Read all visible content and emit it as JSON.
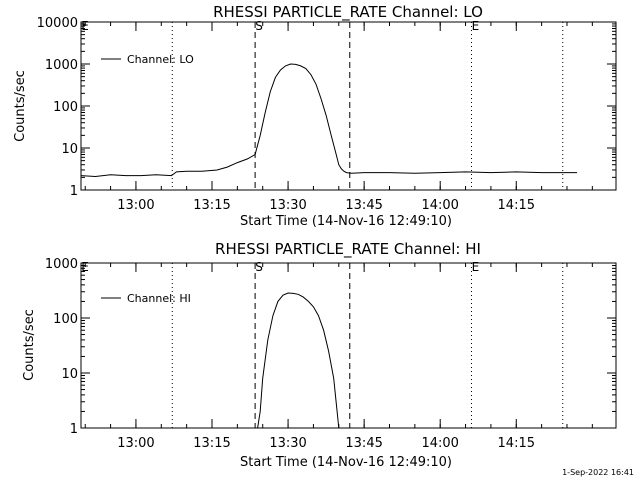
{
  "footer": {
    "timestamp": "1-Sep-2022 16:41"
  },
  "chart_data": [
    {
      "type": "line",
      "title": "RHESSI PARTICLE_RATE Channel: LO",
      "xlabel": "Start Time (14-Nov-16 12:49:10)",
      "ylabel": "Counts/sec",
      "yscale": "log",
      "ylim": [
        1,
        10000
      ],
      "xlim": [
        "12:49:10",
        "14:34:40"
      ],
      "x_ticks": [
        "13:00",
        "13:15",
        "13:30",
        "13:45",
        "14:00",
        "14:15"
      ],
      "y_ticks": [
        "1",
        "10",
        "100",
        "1000",
        "10000"
      ],
      "grid": false,
      "legend": {
        "position": "top-left",
        "entries": [
          "Channel: LO"
        ]
      },
      "markers": [
        {
          "label": "E",
          "time": "12:49:10",
          "style": "dotted"
        },
        {
          "label": "",
          "time": "13:07:10",
          "style": "dotted"
        },
        {
          "label": "S",
          "time": "13:23:30",
          "style": "dashed"
        },
        {
          "label": "",
          "time": "13:42:10",
          "style": "dashed"
        },
        {
          "label": "E",
          "time": "14:06:10",
          "style": "dotted"
        },
        {
          "label": "",
          "time": "14:24:10",
          "style": "dotted"
        }
      ],
      "series": [
        {
          "name": "Channel: LO",
          "x": [
            "12:49:10",
            "12:52:00",
            "12:55:00",
            "12:58:00",
            "13:01:00",
            "13:04:00",
            "13:07:00",
            "13:08:00",
            "13:10:00",
            "13:13:00",
            "13:16:00",
            "13:18:00",
            "13:20:00",
            "13:22:00",
            "13:23:30",
            "13:24:30",
            "13:25:30",
            "13:26:30",
            "13:27:30",
            "13:28:30",
            "13:29:30",
            "13:30:30",
            "13:31:30",
            "13:32:30",
            "13:33:30",
            "13:34:30",
            "13:35:30",
            "13:36:30",
            "13:37:30",
            "13:38:30",
            "13:39:30",
            "13:40:00",
            "13:40:30",
            "13:41:00",
            "13:41:30",
            "13:42:30",
            "13:45:00",
            "13:50:00",
            "13:55:00",
            "14:00:00",
            "14:05:00",
            "14:10:00",
            "14:15:00",
            "14:20:00",
            "14:25:00",
            "14:27:00"
          ],
          "values": [
            2.2,
            2.1,
            2.3,
            2.2,
            2.2,
            2.3,
            2.2,
            2.7,
            2.8,
            2.8,
            3.0,
            3.5,
            4.5,
            5.5,
            7.0,
            20,
            70,
            220,
            480,
            720,
            900,
            1000,
            980,
            900,
            780,
            560,
            330,
            150,
            60,
            20,
            7,
            4,
            3.2,
            2.8,
            2.6,
            2.5,
            2.6,
            2.6,
            2.5,
            2.6,
            2.7,
            2.6,
            2.7,
            2.6,
            2.6,
            2.6
          ]
        }
      ]
    },
    {
      "type": "line",
      "title": "RHESSI PARTICLE_RATE Channel: HI",
      "xlabel": "Start Time (14-Nov-16 12:49:10)",
      "ylabel": "Counts/sec",
      "yscale": "log",
      "ylim": [
        1,
        1000
      ],
      "xlim": [
        "12:49:10",
        "14:34:40"
      ],
      "x_ticks": [
        "13:00",
        "13:15",
        "13:30",
        "13:45",
        "14:00",
        "14:15"
      ],
      "y_ticks": [
        "1",
        "10",
        "100",
        "1000"
      ],
      "grid": false,
      "legend": {
        "position": "top-left",
        "entries": [
          "Channel: HI"
        ]
      },
      "markers": [
        {
          "label": "E",
          "time": "12:49:10",
          "style": "dotted"
        },
        {
          "label": "",
          "time": "13:07:10",
          "style": "dotted"
        },
        {
          "label": "S",
          "time": "13:23:30",
          "style": "dashed"
        },
        {
          "label": "",
          "time": "13:42:10",
          "style": "dashed"
        },
        {
          "label": "E",
          "time": "14:06:10",
          "style": "dotted"
        },
        {
          "label": "",
          "time": "14:24:10",
          "style": "dotted"
        }
      ],
      "series": [
        {
          "name": "Channel: HI",
          "x": [
            "13:24:00",
            "13:24:30",
            "13:25:00",
            "13:26:00",
            "13:27:00",
            "13:28:00",
            "13:29:00",
            "13:30:00",
            "13:31:00",
            "13:32:00",
            "13:33:00",
            "13:34:00",
            "13:35:00",
            "13:36:00",
            "13:37:00",
            "13:38:00",
            "13:39:00",
            "13:39:40",
            "13:40:00"
          ],
          "values": [
            1,
            2,
            8,
            40,
            110,
            200,
            260,
            285,
            280,
            270,
            240,
            200,
            160,
            110,
            60,
            25,
            8,
            2,
            1
          ]
        }
      ]
    }
  ]
}
